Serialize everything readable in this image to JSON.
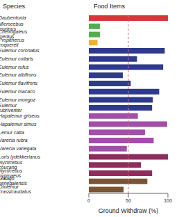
{
  "chart_data": {
    "type": "bar",
    "orientation": "horizontal",
    "header_left": "Species",
    "header_right": "Food Items",
    "xlabel": "Ground Withdraw (%)",
    "categories": [
      "Daubentonia",
      "Microcebus murinus",
      "Cheirogaleus medius",
      "Propithecus coquereli",
      "Eulemur coronatus",
      "Eulemur collaris",
      "Eulemur rufus",
      "Eulemur albifrons",
      "Eulemur flavifrons",
      "Eulemur macaco",
      "Eulemur mongoz",
      "Eulemur rubriventer",
      "Hapalemur griseus",
      "Hapalemur simus",
      "Lemur catta",
      "Varecia rubra",
      "Varecia variegata",
      "Loris lydekkerianus",
      "Nycticebus coucang",
      "Nycticebus pygmaeus",
      "Galago senegalensis",
      "Otolemur crassicaudatus"
    ],
    "values": [
      100,
      14,
      14,
      11,
      96,
      61,
      94,
      43,
      53,
      89,
      81,
      80,
      62,
      99,
      71,
      82,
      48,
      100,
      66,
      80,
      74,
      44
    ],
    "colors": [
      "#d7373a",
      "#52ad4f",
      "#52ad4f",
      "#f0b034",
      "#2f3a8c",
      "#2f3a8c",
      "#2f3a8c",
      "#2f3a8c",
      "#2f3a8c",
      "#2f3a8c",
      "#2f3a8c",
      "#2f3a8c",
      "#a14fa8",
      "#a14fa8",
      "#a14fa8",
      "#a14fa8",
      "#a14fa8",
      "#8e2c5c",
      "#8e2c5c",
      "#8e2c5c",
      "#7b5434",
      "#7b5434"
    ],
    "xlim": [
      0,
      100
    ],
    "xticks": [
      0,
      50,
      100
    ],
    "reference_line": 50,
    "grid": false
  }
}
